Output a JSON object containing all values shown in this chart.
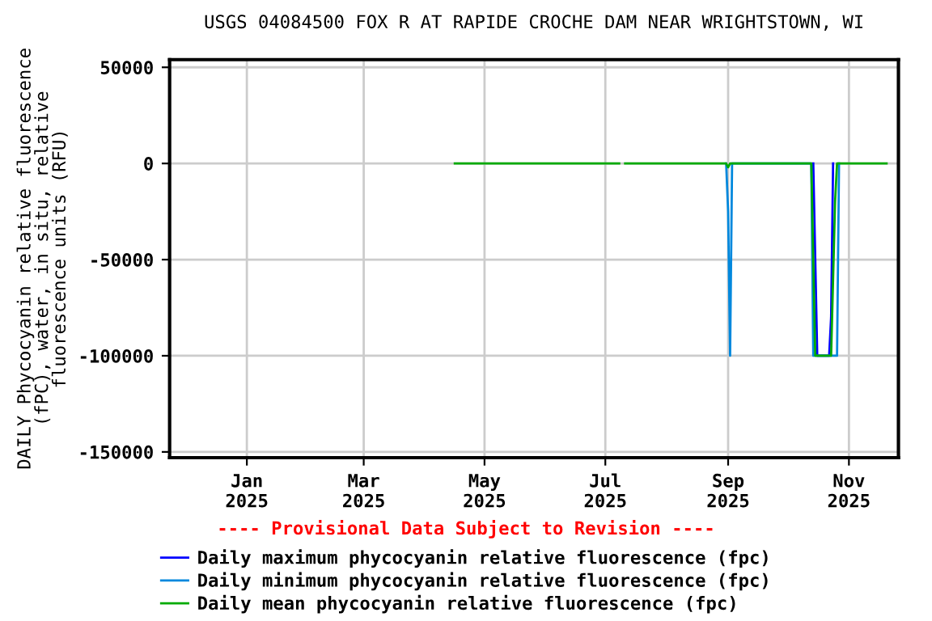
{
  "chart_data": {
    "type": "line",
    "title": "USGS 04084500 FOX R AT RAPIDE CROCHE DAM NEAR WRIGHTSTOWN, WI",
    "ylabel": "DAILY Phycocyanin relative fluorescence\n(fPC), water, in situ, relative\nfluorescence units (RFU)",
    "annotations": [
      "---- Provisional Data Subject to Revision ----"
    ],
    "series": [
      {
        "name": "Daily maximum phycocyanin relative fluorescence (fpc)",
        "color": "#0000ff",
        "x": [
          "2025-10-14",
          "2025-10-15",
          "2025-10-16",
          "2025-10-22",
          "2025-10-23",
          "2025-10-24"
        ],
        "values": [
          0,
          -50000,
          -100000,
          -100000,
          -80000,
          0
        ]
      },
      {
        "name": "Daily minimum phycocyanin relative fluorescence (fpc)",
        "color": "#0088dd",
        "x": [
          "2025-08-31",
          "2025-09-01",
          "2025-09-02",
          "2025-09-03",
          "2025-10-13",
          "2025-10-14",
          "2025-10-26",
          "2025-10-27"
        ],
        "values": [
          0,
          -25000,
          -100000,
          0,
          0,
          -100000,
          -100000,
          0
        ]
      },
      {
        "name": "Daily mean phycocyanin relative fluorescence (fpc)",
        "color": "#00aa00",
        "x": [
          "2025-04-16",
          "2025-07-08",
          "2025-07-09",
          "2025-07-10",
          "2025-07-11",
          "2025-08-31",
          "2025-09-01",
          "2025-09-02",
          "2025-10-13",
          "2025-10-14",
          "2025-10-15",
          "2025-10-23",
          "2025-10-24",
          "2025-10-25",
          "2025-10-26",
          "2025-11-20"
        ],
        "values": [
          0,
          0,
          null,
          null,
          0,
          0,
          -2000,
          0,
          0,
          -50000,
          -100000,
          -100000,
          -60000,
          -20000,
          0,
          0
        ]
      }
    ],
    "xlim": [
      "2024-11-23",
      "2025-11-26"
    ],
    "xticks": [
      {
        "value": "2025-01-01",
        "label": "Jan\n2025"
      },
      {
        "value": "2025-03-01",
        "label": "Mar\n2025"
      },
      {
        "value": "2025-05-01",
        "label": "May\n2025"
      },
      {
        "value": "2025-07-01",
        "label": "Jul\n2025"
      },
      {
        "value": "2025-09-01",
        "label": "Sep\n2025"
      },
      {
        "value": "2025-11-01",
        "label": "Nov\n2025"
      }
    ],
    "ylim": [
      -153000,
      54000
    ],
    "yticks": [
      -150000,
      -100000,
      -50000,
      0,
      50000
    ],
    "grid": true,
    "legend": "bottom"
  }
}
